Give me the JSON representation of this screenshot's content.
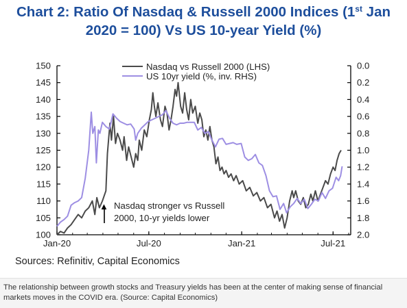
{
  "chart_data": {
    "type": "line",
    "title_parts": {
      "main": "Chart 2: Ratio Of Nasdaq & Russell 2000 Indices (1",
      "sup": "st",
      "end": " Jan",
      "line2": "2020 = 100) Vs US 10-year Yield (%)"
    },
    "x_ticks": [
      "Jan-20",
      "Jul-20",
      "Jan-21",
      "Jul-21"
    ],
    "x_tick_dates": [
      "2020-01-01",
      "2020-07-01",
      "2021-01-01",
      "2021-07-01"
    ],
    "xlim": [
      "2020-01-01",
      "2021-08-05"
    ],
    "y_left": {
      "lim": [
        100,
        150
      ],
      "ticks": [
        "150",
        "145",
        "140",
        "135",
        "130",
        "125",
        "120",
        "115",
        "110",
        "105",
        "100"
      ]
    },
    "y_right": {
      "lim": [
        0.0,
        2.0
      ],
      "inverted": true,
      "ticks": [
        "0.0",
        "0.2",
        "0.4",
        "0.6",
        "0.8",
        "1.0",
        "1.2",
        "1.4",
        "1.6",
        "1.8",
        "2.0"
      ]
    },
    "grid": false,
    "legend_position": "top-center",
    "annotation": {
      "arrow": "▲",
      "line1": "Nasdaq stronger vs Russell",
      "line2": "2000, 10-yr yields lower",
      "date": "2020-03-01",
      "value": 110
    },
    "series": [
      {
        "name": "Nasdaq vs Russell 2000 (LHS)",
        "axis": "left",
        "color": "#4a4a4a",
        "points": [
          [
            "2020-01-01",
            100
          ],
          [
            "2020-01-08",
            101
          ],
          [
            "2020-01-15",
            100.5
          ],
          [
            "2020-01-22",
            102
          ],
          [
            "2020-01-29",
            103
          ],
          [
            "2020-02-05",
            104.5
          ],
          [
            "2020-02-12",
            106
          ],
          [
            "2020-02-19",
            105
          ],
          [
            "2020-02-26",
            107
          ],
          [
            "2020-03-04",
            108
          ],
          [
            "2020-03-11",
            110
          ],
          [
            "2020-03-16",
            106
          ],
          [
            "2020-03-20",
            111
          ],
          [
            "2020-03-25",
            108
          ],
          [
            "2020-03-31",
            110
          ],
          [
            "2020-04-07",
            113
          ],
          [
            "2020-04-10",
            124
          ],
          [
            "2020-04-15",
            133
          ],
          [
            "2020-04-18",
            128
          ],
          [
            "2020-04-22",
            135
          ],
          [
            "2020-04-26",
            127
          ],
          [
            "2020-04-30",
            130
          ],
          [
            "2020-05-05",
            128
          ],
          [
            "2020-05-10",
            125
          ],
          [
            "2020-05-13",
            129
          ],
          [
            "2020-05-18",
            122
          ],
          [
            "2020-05-22",
            126
          ],
          [
            "2020-05-27",
            123
          ],
          [
            "2020-06-01",
            120
          ],
          [
            "2020-06-05",
            124
          ],
          [
            "2020-06-09",
            122
          ],
          [
            "2020-06-12",
            128
          ],
          [
            "2020-06-17",
            125
          ],
          [
            "2020-06-22",
            131
          ],
          [
            "2020-06-27",
            129
          ],
          [
            "2020-07-02",
            134
          ],
          [
            "2020-07-06",
            137
          ],
          [
            "2020-07-09",
            142
          ],
          [
            "2020-07-12",
            138
          ],
          [
            "2020-07-15",
            135
          ],
          [
            "2020-07-19",
            139
          ],
          [
            "2020-07-24",
            134
          ],
          [
            "2020-07-28",
            132
          ],
          [
            "2020-08-02",
            138
          ],
          [
            "2020-08-06",
            136
          ],
          [
            "2020-08-10",
            131
          ],
          [
            "2020-08-14",
            134
          ],
          [
            "2020-08-18",
            138
          ],
          [
            "2020-08-22",
            143
          ],
          [
            "2020-08-25",
            141
          ],
          [
            "2020-08-28",
            145
          ],
          [
            "2020-09-02",
            138
          ],
          [
            "2020-09-06",
            136
          ],
          [
            "2020-09-10",
            142
          ],
          [
            "2020-09-14",
            137
          ],
          [
            "2020-09-18",
            134
          ],
          [
            "2020-09-22",
            140
          ],
          [
            "2020-09-26",
            136
          ],
          [
            "2020-10-01",
            138
          ],
          [
            "2020-10-06",
            133
          ],
          [
            "2020-10-10",
            136
          ],
          [
            "2020-10-14",
            134
          ],
          [
            "2020-10-18",
            129
          ],
          [
            "2020-10-22",
            131
          ],
          [
            "2020-10-26",
            128
          ],
          [
            "2020-10-30",
            132
          ],
          [
            "2020-11-03",
            128
          ],
          [
            "2020-11-07",
            126
          ],
          [
            "2020-11-11",
            121
          ],
          [
            "2020-11-15",
            123
          ],
          [
            "2020-11-19",
            119
          ],
          [
            "2020-11-23",
            120
          ],
          [
            "2020-11-27",
            118
          ],
          [
            "2020-12-01",
            119
          ],
          [
            "2020-12-06",
            117
          ],
          [
            "2020-12-11",
            118
          ],
          [
            "2020-12-16",
            116
          ],
          [
            "2020-12-21",
            117.5
          ],
          [
            "2020-12-27",
            115
          ],
          [
            "2021-01-03",
            116
          ],
          [
            "2021-01-10",
            113
          ],
          [
            "2021-01-17",
            114
          ],
          [
            "2021-01-24",
            111.5
          ],
          [
            "2021-01-31",
            112.5
          ],
          [
            "2021-02-07",
            110
          ],
          [
            "2021-02-14",
            111
          ],
          [
            "2021-02-21",
            108
          ],
          [
            "2021-02-28",
            109
          ],
          [
            "2021-03-07",
            105
          ],
          [
            "2021-03-12",
            107
          ],
          [
            "2021-03-17",
            104
          ],
          [
            "2021-03-22",
            106
          ],
          [
            "2021-03-27",
            102
          ],
          [
            "2021-04-01",
            105
          ],
          [
            "2021-04-06",
            110
          ],
          [
            "2021-04-11",
            113
          ],
          [
            "2021-04-14",
            111
          ],
          [
            "2021-04-18",
            113
          ],
          [
            "2021-04-23",
            110
          ],
          [
            "2021-04-28",
            109
          ],
          [
            "2021-05-03",
            111
          ],
          [
            "2021-05-08",
            108
          ],
          [
            "2021-05-13",
            109
          ],
          [
            "2021-05-18",
            112
          ],
          [
            "2021-05-22",
            110
          ],
          [
            "2021-05-27",
            113
          ],
          [
            "2021-06-01",
            110
          ],
          [
            "2021-06-06",
            112
          ],
          [
            "2021-06-11",
            114
          ],
          [
            "2021-06-16",
            116
          ],
          [
            "2021-06-21",
            115
          ],
          [
            "2021-06-26",
            118
          ],
          [
            "2021-07-01",
            120
          ],
          [
            "2021-07-05",
            119
          ],
          [
            "2021-07-09",
            122
          ],
          [
            "2021-07-13",
            124
          ],
          [
            "2021-07-17",
            125
          ]
        ]
      },
      {
        "name": "US 10yr yield (%, inv. RHS)",
        "axis": "right",
        "color": "#9d8ee3",
        "points": [
          [
            "2020-01-01",
            1.9
          ],
          [
            "2020-01-08",
            1.85
          ],
          [
            "2020-01-15",
            1.82
          ],
          [
            "2020-01-22",
            1.78
          ],
          [
            "2020-01-29",
            1.65
          ],
          [
            "2020-02-05",
            1.62
          ],
          [
            "2020-02-12",
            1.6
          ],
          [
            "2020-02-19",
            1.56
          ],
          [
            "2020-02-26",
            1.33
          ],
          [
            "2020-03-04",
            1.0
          ],
          [
            "2020-03-09",
            0.55
          ],
          [
            "2020-03-12",
            0.8
          ],
          [
            "2020-03-16",
            0.72
          ],
          [
            "2020-03-19",
            1.15
          ],
          [
            "2020-03-23",
            0.76
          ],
          [
            "2020-03-26",
            0.8
          ],
          [
            "2020-03-31",
            0.67
          ],
          [
            "2020-04-07",
            0.72
          ],
          [
            "2020-04-14",
            0.75
          ],
          [
            "2020-04-21",
            0.57
          ],
          [
            "2020-04-28",
            0.62
          ],
          [
            "2020-05-05",
            0.66
          ],
          [
            "2020-05-12",
            0.68
          ],
          [
            "2020-05-19",
            0.7
          ],
          [
            "2020-05-26",
            0.69
          ],
          [
            "2020-06-02",
            0.75
          ],
          [
            "2020-06-05",
            0.88
          ],
          [
            "2020-06-09",
            0.8
          ],
          [
            "2020-06-16",
            0.74
          ],
          [
            "2020-06-23",
            0.7
          ],
          [
            "2020-06-30",
            0.66
          ],
          [
            "2020-07-07",
            0.64
          ],
          [
            "2020-07-14",
            0.62
          ],
          [
            "2020-07-21",
            0.6
          ],
          [
            "2020-07-28",
            0.58
          ],
          [
            "2020-08-04",
            0.53
          ],
          [
            "2020-08-11",
            0.62
          ],
          [
            "2020-08-18",
            0.68
          ],
          [
            "2020-08-25",
            0.7
          ],
          [
            "2020-09-01",
            0.68
          ],
          [
            "2020-09-08",
            0.68
          ],
          [
            "2020-09-15",
            0.67
          ],
          [
            "2020-09-22",
            0.67
          ],
          [
            "2020-09-29",
            0.67
          ],
          [
            "2020-10-06",
            0.76
          ],
          [
            "2020-10-13",
            0.73
          ],
          [
            "2020-10-20",
            0.8
          ],
          [
            "2020-10-27",
            0.78
          ],
          [
            "2020-11-03",
            0.88
          ],
          [
            "2020-11-10",
            0.96
          ],
          [
            "2020-11-17",
            0.87
          ],
          [
            "2020-11-24",
            0.86
          ],
          [
            "2020-12-01",
            0.93
          ],
          [
            "2020-12-08",
            0.92
          ],
          [
            "2020-12-15",
            0.91
          ],
          [
            "2020-12-22",
            0.93
          ],
          [
            "2020-12-31",
            0.92
          ],
          [
            "2021-01-07",
            1.08
          ],
          [
            "2021-01-14",
            1.12
          ],
          [
            "2021-01-21",
            1.1
          ],
          [
            "2021-01-28",
            1.05
          ],
          [
            "2021-02-04",
            1.15
          ],
          [
            "2021-02-11",
            1.18
          ],
          [
            "2021-02-18",
            1.3
          ],
          [
            "2021-02-25",
            1.48
          ],
          [
            "2021-03-04",
            1.55
          ],
          [
            "2021-03-11",
            1.54
          ],
          [
            "2021-03-18",
            1.7
          ],
          [
            "2021-03-25",
            1.63
          ],
          [
            "2021-03-31",
            1.74
          ],
          [
            "2021-04-07",
            1.67
          ],
          [
            "2021-04-14",
            1.63
          ],
          [
            "2021-04-21",
            1.57
          ],
          [
            "2021-04-28",
            1.63
          ],
          [
            "2021-05-05",
            1.58
          ],
          [
            "2021-05-12",
            1.69
          ],
          [
            "2021-05-19",
            1.64
          ],
          [
            "2021-05-26",
            1.58
          ],
          [
            "2021-06-02",
            1.6
          ],
          [
            "2021-06-09",
            1.5
          ],
          [
            "2021-06-16",
            1.57
          ],
          [
            "2021-06-23",
            1.48
          ],
          [
            "2021-06-30",
            1.45
          ],
          [
            "2021-07-07",
            1.32
          ],
          [
            "2021-07-12",
            1.36
          ],
          [
            "2021-07-16",
            1.3
          ],
          [
            "2021-07-19",
            1.19
          ]
        ]
      }
    ]
  },
  "sources": "Sources: Refinitiv, Capital Economics",
  "caption": "The relationship between growth stocks and Treasury yields has been at the center of making sense of financial markets moves in the COVID era. (Source: Capital Economics)"
}
